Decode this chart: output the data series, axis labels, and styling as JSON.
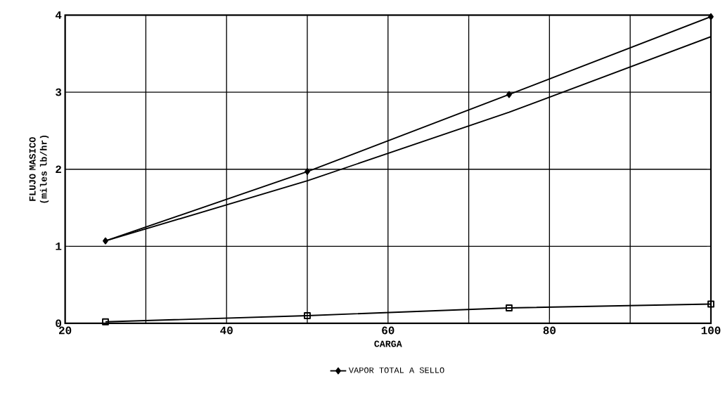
{
  "chart_data": {
    "type": "line",
    "xlabel": "CARGA",
    "ylabel": "FLUJO MASICO (miles lb/hr)",
    "x": [
      25,
      50,
      75,
      100
    ],
    "series": [
      {
        "name": "VAPOR TOTAL A SELLO",
        "color": "#000000",
        "marker": "diamond",
        "values": [
          1.07,
          1.97,
          2.97,
          3.98
        ]
      },
      {
        "color": "#000000",
        "marker": "none",
        "values": [
          1.07,
          1.85,
          2.74,
          3.72
        ]
      },
      {
        "color": "#000000",
        "marker": "square",
        "values": [
          0.02,
          0.1,
          0.2,
          0.25
        ]
      }
    ],
    "xlim": [
      20,
      100
    ],
    "xticks": [
      20,
      {
        "value": 30,
        "label": null
      },
      40,
      {
        "value": 50,
        "label": null
      },
      60,
      {
        "value": 70,
        "label": null
      },
      80,
      {
        "value": 90,
        "label": null
      },
      100
    ],
    "ylim": [
      0,
      4
    ],
    "yticks": [
      0,
      1,
      2,
      3,
      4
    ],
    "grid": true,
    "legend": "bottom"
  }
}
